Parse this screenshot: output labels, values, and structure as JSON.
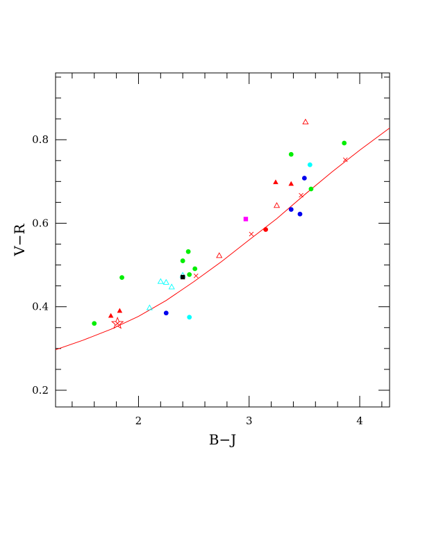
{
  "chart_data": {
    "type": "scatter",
    "xlabel": "B−J",
    "ylabel": "V−R",
    "xlim": [
      1.25,
      4.27
    ],
    "ylim": [
      0.16,
      0.96
    ],
    "x_ticks": [
      2,
      3,
      4
    ],
    "x_tick_labels": [
      "2",
      "3",
      "4"
    ],
    "y_ticks": [
      0.2,
      0.4,
      0.6,
      0.8
    ],
    "y_tick_labels": [
      "0.2",
      "0.4",
      "0.6",
      "0.8"
    ],
    "grid": false,
    "colors": {
      "red": "#ff0000",
      "green": "#00ee00",
      "cyan": "#00ffff",
      "blue": "#0000ee",
      "magenta": "#ff00ff",
      "black": "#000000",
      "curve": "#ff0000"
    },
    "series": [
      {
        "marker": "circle-filled",
        "color": "green",
        "points": [
          [
            1.6,
            0.36
          ],
          [
            1.85,
            0.47
          ],
          [
            2.4,
            0.51
          ],
          [
            2.45,
            0.532
          ],
          [
            2.46,
            0.477
          ],
          [
            2.51,
            0.491
          ],
          [
            3.38,
            0.765
          ],
          [
            3.56,
            0.682
          ],
          [
            3.86,
            0.792
          ]
        ]
      },
      {
        "marker": "circle-filled",
        "color": "cyan",
        "points": [
          [
            2.46,
            0.375
          ],
          [
            3.55,
            0.74
          ]
        ]
      },
      {
        "marker": "circle-filled",
        "color": "blue",
        "points": [
          [
            2.25,
            0.385
          ],
          [
            3.38,
            0.633
          ],
          [
            3.46,
            0.622
          ],
          [
            3.5,
            0.708
          ]
        ]
      },
      {
        "marker": "circle-filled",
        "color": "red",
        "points": [
          [
            3.15,
            0.585
          ]
        ]
      },
      {
        "marker": "triangle-filled",
        "color": "red",
        "points": [
          [
            1.75,
            0.378
          ],
          [
            1.83,
            0.39
          ],
          [
            3.24,
            0.698
          ],
          [
            3.38,
            0.694
          ]
        ]
      },
      {
        "marker": "triangle-open",
        "color": "red",
        "points": [
          [
            2.73,
            0.522
          ],
          [
            3.25,
            0.642
          ],
          [
            3.51,
            0.842
          ]
        ]
      },
      {
        "marker": "triangle-open",
        "color": "cyan",
        "points": [
          [
            2.1,
            0.397
          ],
          [
            2.2,
            0.46
          ],
          [
            2.25,
            0.458
          ],
          [
            2.3,
            0.447
          ],
          [
            2.4,
            0.475
          ]
        ]
      },
      {
        "marker": "square-filled",
        "color": "black",
        "points": [
          [
            2.4,
            0.471
          ]
        ]
      },
      {
        "marker": "square-filled",
        "color": "magenta",
        "points": [
          [
            2.97,
            0.61
          ]
        ]
      },
      {
        "marker": "star-open",
        "color": "red",
        "points": [
          [
            1.81,
            0.36
          ]
        ]
      },
      {
        "marker": "cross",
        "color": "red",
        "points": [
          [
            1.81,
            0.36
          ],
          [
            2.52,
            0.474
          ],
          [
            3.02,
            0.574
          ],
          [
            3.47,
            0.667
          ],
          [
            3.87,
            0.752
          ]
        ]
      }
    ],
    "curve": {
      "color": "curve",
      "points": [
        [
          1.25,
          0.297
        ],
        [
          1.5,
          0.32
        ],
        [
          1.75,
          0.346
        ],
        [
          2.0,
          0.377
        ],
        [
          2.25,
          0.415
        ],
        [
          2.5,
          0.46
        ],
        [
          2.75,
          0.508
        ],
        [
          3.0,
          0.56
        ],
        [
          3.25,
          0.611
        ],
        [
          3.5,
          0.668
        ],
        [
          3.75,
          0.723
        ],
        [
          4.0,
          0.775
        ],
        [
          4.27,
          0.828
        ]
      ]
    }
  }
}
